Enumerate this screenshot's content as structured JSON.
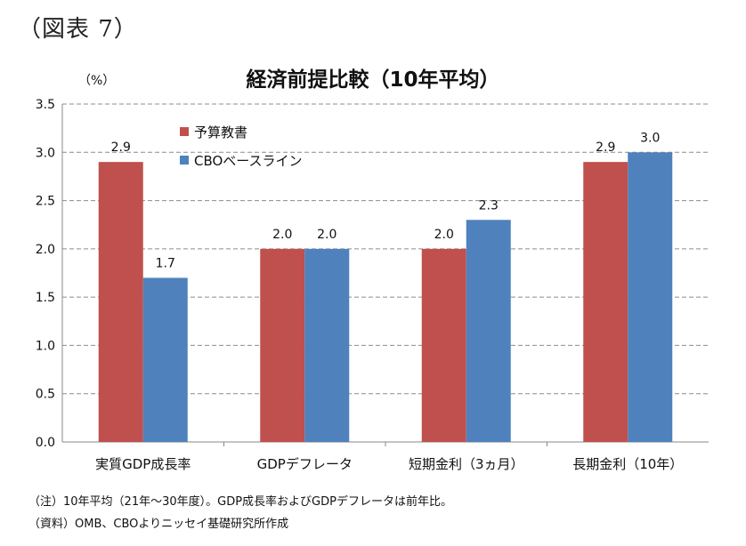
{
  "figure_label": "（図表 7）",
  "notes": {
    "note": "（注）10年平均（21年～30年度）。GDP成長率およびGDPデフレータは前年比。",
    "source": "（資料）OMB、CBOよりニッセイ基礎研究所作成"
  },
  "colors": {
    "budget": "#c0504d",
    "cbo": "#4f81bd",
    "grid": "#8c8c8c",
    "axis": "#888888"
  },
  "chart_data": {
    "type": "bar",
    "title": "経済前提比較（10年平均）",
    "ylabel": "（%）",
    "xlabel": "",
    "ylim": [
      0,
      3.5
    ],
    "yticks": [
      "0.0",
      "0.5",
      "1.0",
      "1.5",
      "2.0",
      "2.5",
      "3.0",
      "3.5"
    ],
    "grid": true,
    "legend_position": "top-left",
    "categories": [
      "実質GDP成長率",
      "GDPデフレータ",
      "短期金利（3ヵ月）",
      "長期金利（10年）"
    ],
    "series": [
      {
        "name": "予算教書",
        "values": [
          2.9,
          2.0,
          2.0,
          2.9
        ],
        "labels": [
          "2.9",
          "2.0",
          "2.0",
          "2.9"
        ]
      },
      {
        "name": "CBOベースライン",
        "values": [
          1.7,
          2.0,
          2.3,
          3.0
        ],
        "labels": [
          "1.7",
          "2.0",
          "2.3",
          "3.0"
        ]
      }
    ]
  }
}
